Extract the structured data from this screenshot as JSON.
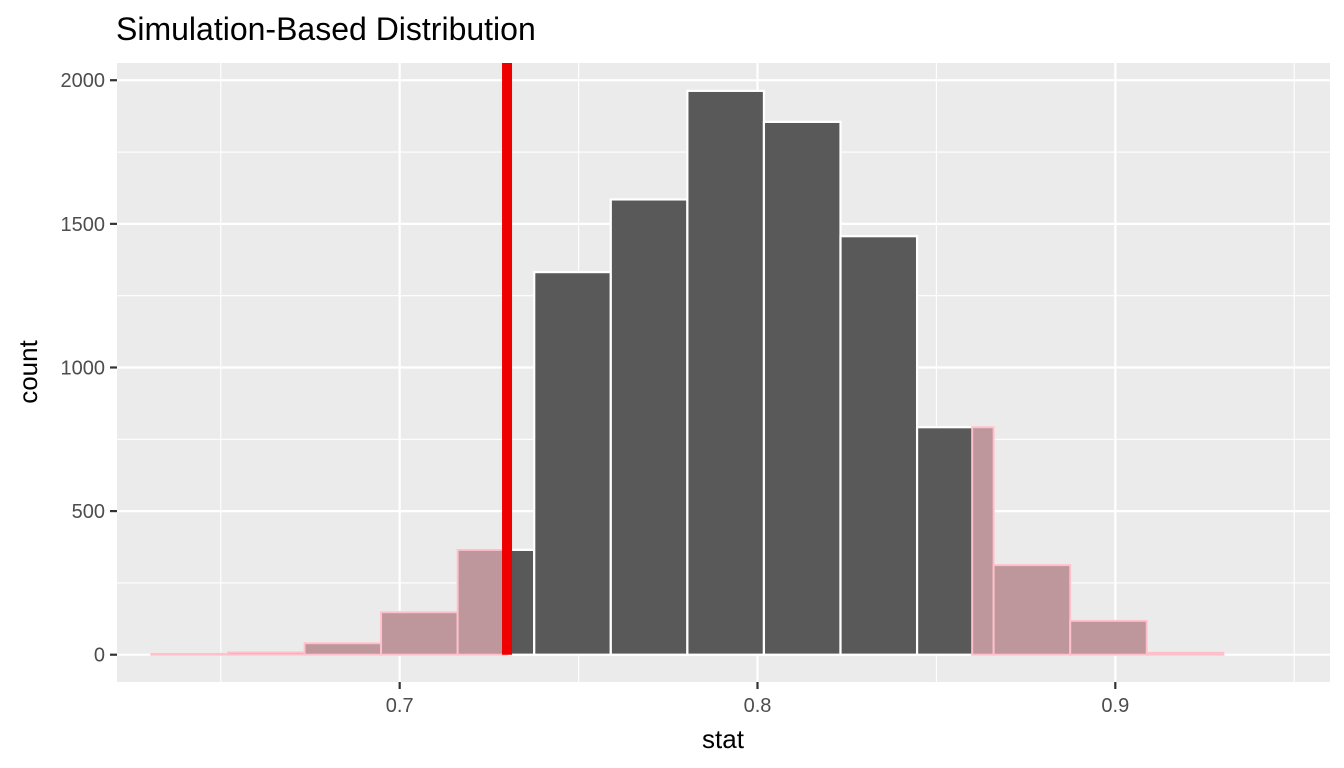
{
  "chart_data": {
    "type": "bar",
    "title": "Simulation-Based Distribution",
    "xlabel": "stat",
    "ylabel": "count",
    "xlim": [
      0.621,
      0.96
    ],
    "ylim": [
      -95,
      2060
    ],
    "x_ticks": [
      0.7,
      0.8,
      0.9
    ],
    "x_tick_labels": [
      "0.7",
      "0.8",
      "0.9"
    ],
    "y_ticks": [
      0,
      500,
      1000,
      1500,
      2000
    ],
    "y_tick_labels": [
      "0",
      "500",
      "1000",
      "1500",
      "2000"
    ],
    "bin_width": 0.0214,
    "bins": [
      {
        "x": 0.6413,
        "count": 3
      },
      {
        "x": 0.6627,
        "count": 8
      },
      {
        "x": 0.6841,
        "count": 40
      },
      {
        "x": 0.7055,
        "count": 148
      },
      {
        "x": 0.7269,
        "count": 365
      },
      {
        "x": 0.7483,
        "count": 1332
      },
      {
        "x": 0.7697,
        "count": 1585
      },
      {
        "x": 0.7911,
        "count": 1963
      },
      {
        "x": 0.8125,
        "count": 1855
      },
      {
        "x": 0.8339,
        "count": 1457
      },
      {
        "x": 0.8553,
        "count": 792
      },
      {
        "x": 0.8767,
        "count": 312
      },
      {
        "x": 0.8981,
        "count": 118
      },
      {
        "x": 0.9195,
        "count": 7
      }
    ],
    "observed_stat": 0.73,
    "shade_direction": "both",
    "shade_bounds": [
      0.73,
      0.86
    ],
    "grid": true,
    "colors": {
      "panel_background": "#ebebeb",
      "grid": "#ffffff",
      "bar_fill": "#595959",
      "bar_outline": "#ffffff",
      "shade_fill": "#bd979c",
      "shade_outline": "#ffc0cb",
      "observed_line": "#ee0000"
    }
  }
}
